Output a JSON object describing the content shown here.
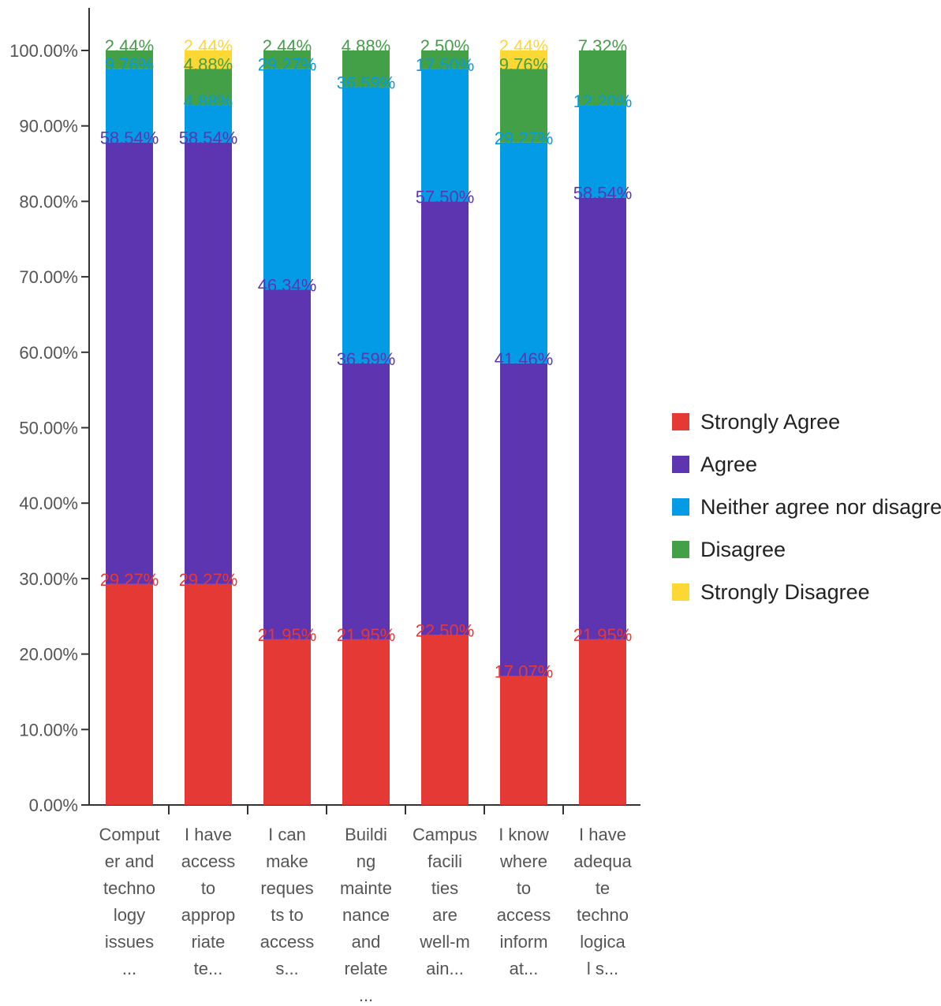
{
  "chart_data": {
    "type": "bar",
    "stacked": true,
    "title": "",
    "xlabel": "",
    "ylabel": "",
    "ylim": [
      0,
      100
    ],
    "yticks": [
      "0.00%",
      "10.00%",
      "20.00%",
      "30.00%",
      "40.00%",
      "50.00%",
      "60.00%",
      "70.00%",
      "80.00%",
      "90.00%",
      "100.00%"
    ],
    "categories": [
      [
        "Comput",
        "er and",
        "techno",
        "logy",
        "issues",
        "..."
      ],
      [
        "I have",
        "access",
        "to",
        "approp",
        "riate",
        "te..."
      ],
      [
        "I can",
        "make",
        "reques",
        "ts to",
        "access",
        "s..."
      ],
      [
        "Buildi",
        "ng",
        "mainte",
        "nance",
        "and",
        "relate",
        "..."
      ],
      [
        "Campus",
        "facili",
        "ties",
        "are",
        "well-m",
        "ain..."
      ],
      [
        "I know",
        "where",
        "to",
        "access",
        "inform",
        "at..."
      ],
      [
        "I have",
        "adequa",
        "te",
        "techno",
        "logica",
        "l s..."
      ]
    ],
    "series": [
      {
        "name": "Strongly Agree",
        "color": "#e53935",
        "values": [
          29.27,
          29.27,
          21.95,
          21.95,
          22.5,
          17.07,
          21.95
        ],
        "labels": [
          "29.27%",
          "29.27%",
          "21.95%",
          "21.95%",
          "22.50%",
          "17.07%",
          "21.95%"
        ]
      },
      {
        "name": "Agree",
        "color": "#5e35b1",
        "values": [
          58.54,
          58.54,
          46.34,
          36.59,
          57.5,
          41.46,
          58.54
        ],
        "labels": [
          "58.54%",
          "58.54%",
          "46.34%",
          "36.59%",
          "57.50%",
          "41.46%",
          "58.54%"
        ]
      },
      {
        "name": "Neither agree nor disagree",
        "color": "#039be5",
        "values": [
          9.76,
          4.88,
          29.27,
          36.59,
          17.5,
          29.27,
          12.2
        ],
        "labels": [
          "9.76%",
          "4.88%",
          "29.27%",
          "36.59%",
          "17.50%",
          "29.27%",
          "12.20%"
        ]
      },
      {
        "name": "Disagree",
        "color": "#43a047",
        "values": [
          2.44,
          4.88,
          2.44,
          4.88,
          2.5,
          9.76,
          7.32
        ],
        "labels": [
          "2.44%",
          "4.88%",
          "2.44%",
          "4.88%",
          "2.50%",
          "9.76%",
          "7.32%"
        ]
      },
      {
        "name": "Strongly Disagree",
        "color": "#fdd835",
        "values": [
          0,
          2.44,
          0,
          0,
          0,
          2.44,
          0
        ],
        "labels": [
          "",
          "2.44%",
          "",
          "",
          "",
          "2.44%",
          ""
        ]
      }
    ],
    "legend_position": "right",
    "grid": false
  }
}
